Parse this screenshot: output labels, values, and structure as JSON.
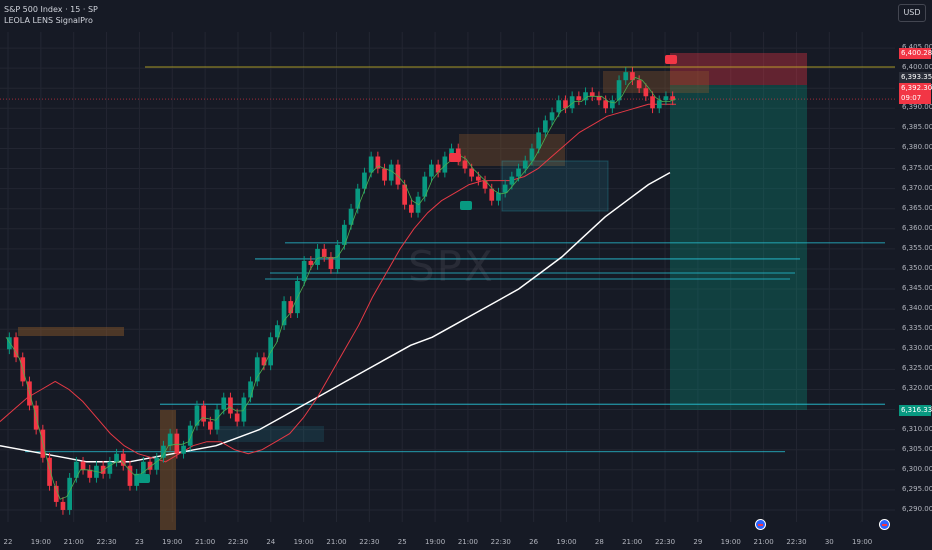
{
  "header": {
    "title": "S&P 500 Index · 15 · SP",
    "indicator": "LEOLA LENS SignalPro",
    "currency": "USD",
    "watermark": "SPX"
  },
  "price_tags": {
    "resistance": "6,400.28",
    "last_price": "6,393.35",
    "current": "6,392.30",
    "countdown": "09:07",
    "target": "6,316.33"
  },
  "signals": {
    "sell": "SELL",
    "buy": "BUY"
  },
  "colors": {
    "background": "#161a25",
    "up": "#089981",
    "down": "#f23645",
    "fast_ma": "#4caf50",
    "slow_ma": "#e53945",
    "long_ma": "#ffffff",
    "zone_line": "#26c6da",
    "resistance_line": "#d4c025"
  },
  "chart_data": {
    "type": "candlestick",
    "symbol": "SPX",
    "interval": "15",
    "ylim": [
      6287,
      6409
    ],
    "y_ticks": [
      "6,405.00",
      "6,400.00",
      "6,395.00",
      "6,390.00",
      "6,385.00",
      "6,380.00",
      "6,375.00",
      "6,370.00",
      "6,365.00",
      "6,360.00",
      "6,355.00",
      "6,350.00",
      "6,345.00",
      "6,340.00",
      "6,335.00",
      "6,330.00",
      "6,325.00",
      "6,320.00",
      "6,315.00",
      "6,310.00",
      "6,305.00",
      "6,300.00",
      "6,295.00",
      "6,290.00"
    ],
    "x_ticks": [
      "22",
      "19:00",
      "21:00",
      "22:30",
      "23",
      "19:00",
      "21:00",
      "22:30",
      "24",
      "19:00",
      "21:00",
      "22:30",
      "25",
      "19:00",
      "21:00",
      "22:30",
      "26",
      "19:00",
      "28",
      "21:00",
      "22:30",
      "29",
      "19:00",
      "21:00",
      "22:30",
      "30",
      "19:00"
    ],
    "closes": [
      6333,
      6328,
      6322,
      6316,
      6310,
      6303,
      6296,
      6292,
      6290,
      6298,
      6302,
      6300,
      6298,
      6301,
      6299,
      6302,
      6304,
      6301,
      6296,
      6299,
      6302,
      6300,
      6303,
      6306,
      6309,
      6304,
      6306,
      6311,
      6316,
      6312,
      6310,
      6315,
      6318,
      6314,
      6312,
      6318,
      6322,
      6328,
      6326,
      6333,
      6336,
      6342,
      6339,
      6347,
      6352,
      6351,
      6355,
      6353,
      6350,
      6356,
      6361,
      6365,
      6370,
      6374,
      6378,
      6375,
      6372,
      6376,
      6371,
      6366,
      6364,
      6368,
      6373,
      6376,
      6374,
      6378,
      6380,
      6377,
      6375,
      6373,
      6372,
      6370,
      6367,
      6369,
      6371,
      6373,
      6375,
      6377,
      6380,
      6384,
      6387,
      6389,
      6392,
      6390,
      6393,
      6392,
      6394,
      6393,
      6392,
      6390,
      6392,
      6397,
      6399,
      6397,
      6395,
      6393,
      6390,
      6392,
      6393,
      6392
    ],
    "opens": [
      6330,
      6333,
      6328,
      6322,
      6316,
      6310,
      6303,
      6296,
      6292,
      6290,
      6298,
      6302,
      6300,
      6298,
      6301,
      6299,
      6302,
      6304,
      6301,
      6296,
      6299,
      6302,
      6300,
      6303,
      6306,
      6309,
      6304,
      6306,
      6311,
      6316,
      6312,
      6310,
      6315,
      6318,
      6314,
      6312,
      6318,
      6322,
      6328,
      6326,
      6333,
      6336,
      6342,
      6339,
      6347,
      6352,
      6351,
      6355,
      6353,
      6350,
      6356,
      6361,
      6365,
      6370,
      6374,
      6378,
      6375,
      6372,
      6376,
      6371,
      6366,
      6364,
      6368,
      6373,
      6376,
      6374,
      6378,
      6380,
      6377,
      6375,
      6373,
      6372,
      6370,
      6367,
      6369,
      6371,
      6373,
      6375,
      6377,
      6380,
      6384,
      6387,
      6389,
      6392,
      6390,
      6393,
      6392,
      6394,
      6393,
      6392,
      6390,
      6392,
      6397,
      6399,
      6397,
      6395,
      6393,
      6390,
      6392,
      6393
    ],
    "series": [
      {
        "name": "",
        "values": [
          6312,
          6315,
          6318,
          6320,
          6322,
          6320,
          6317,
          6313,
          6309,
          6306,
          6304,
          6303,
          6302,
          6304,
          6306,
          6307,
          6307,
          6305,
          6304,
          6305,
          6307,
          6309,
          6313,
          6318,
          6324,
          6330,
          6336,
          6343,
          6349,
          6355,
          6360,
          6364,
          6367,
          6369,
          6371,
          6372,
          6372,
          6372,
          6373,
          6375,
          6378,
          6381,
          6384,
          6386,
          6388,
          6389,
          6390,
          6391,
          6391,
          6391
        ]
      },
      {
        "name": "",
        "values": [
          6306,
          6305,
          6304,
          6303,
          6302,
          6302,
          6302,
          6303,
          6304,
          6305,
          6306,
          6308,
          6310,
          6313,
          6316,
          6319,
          6322,
          6325,
          6328,
          6331,
          6333,
          6336,
          6339,
          6342,
          6345,
          6349,
          6353,
          6358,
          6363,
          6367,
          6371,
          6374
        ]
      }
    ],
    "levels": [
      6400.28,
      6356.5,
      6352.5,
      6349.0,
      6347.5,
      6316.33,
      6304.5
    ]
  }
}
